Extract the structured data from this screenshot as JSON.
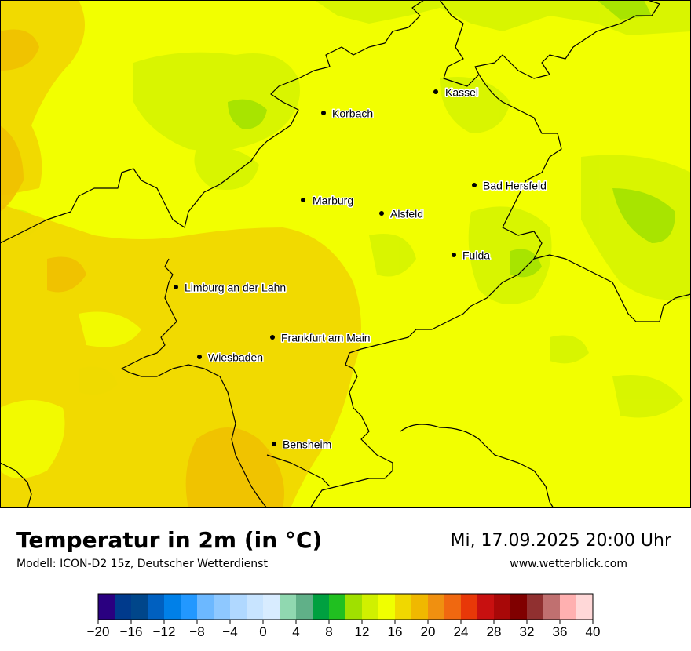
{
  "map": {
    "title": "Temperatur in 2m (in °C)",
    "subtitle": "Modell: ICON-D2 15z, Deutscher Wetterdienst",
    "datetime": "Mi, 17.09.2025 20:00 Uhr",
    "website": "www.wetterblick.com",
    "cities": [
      {
        "name": "Kassel"
      },
      {
        "name": "Korbach"
      },
      {
        "name": "Bad Hersfeld"
      },
      {
        "name": "Marburg"
      },
      {
        "name": "Alsfeld"
      },
      {
        "name": "Fulda"
      },
      {
        "name": "Limburg an der Lahn"
      },
      {
        "name": "Frankfurt am Main"
      },
      {
        "name": "Wiesbaden"
      },
      {
        "name": "Bensheim"
      }
    ]
  },
  "legend": {
    "colors": [
      "#2a0080",
      "#003a8c",
      "#00468a",
      "#0060c0",
      "#0080e8",
      "#2298ff",
      "#6cb8ff",
      "#8ec8ff",
      "#b0d8ff",
      "#c8e4ff",
      "#d8ecff",
      "#90d8b0",
      "#60b088",
      "#00a040",
      "#20c020",
      "#a0e000",
      "#d0f000",
      "#f0ff00",
      "#f0d800",
      "#f0b800",
      "#f09010",
      "#f06810",
      "#e83808",
      "#c81010",
      "#a80808",
      "#800000",
      "#903030",
      "#c07070",
      "#ffb0b0",
      "#ffd8d8"
    ],
    "ticks": [
      "−20",
      "−16",
      "−12",
      "−8",
      "−4",
      "0",
      "4",
      "8",
      "12",
      "16",
      "20",
      "24",
      "28",
      "32",
      "36",
      "40"
    ]
  }
}
